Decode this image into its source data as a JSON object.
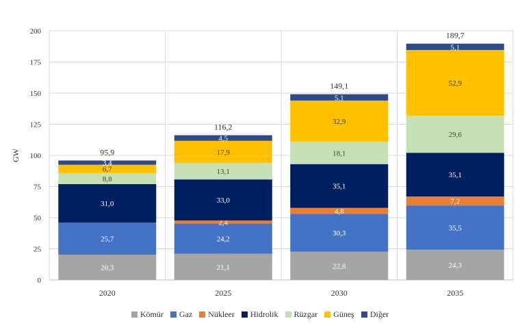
{
  "chart_data": {
    "type": "bar",
    "stacked": true,
    "title": "",
    "xlabel": "",
    "ylabel": "GW",
    "ylim": [
      0,
      200
    ],
    "yticks": [
      "0",
      "25",
      "50",
      "75",
      "100",
      "125",
      "150",
      "175",
      "200"
    ],
    "categories": [
      "2020",
      "2025",
      "2030",
      "2035"
    ],
    "series": [
      {
        "name": "Kömür",
        "color": "#A5A5A5",
        "values": [
          20.3,
          21.1,
          22.8,
          24.3
        ],
        "labels": [
          "20,3",
          "21,1",
          "22,8",
          "24,3"
        ]
      },
      {
        "name": "Gaz",
        "color": "#4472C4",
        "values": [
          25.7,
          24.2,
          30.3,
          35.5
        ],
        "labels": [
          "25,7",
          "24,2",
          "30,3",
          "35,5"
        ]
      },
      {
        "name": "Nükleer",
        "color": "#ED7D31",
        "values": [
          0,
          2.4,
          4.8,
          7.2
        ],
        "labels": [
          "",
          "2,4",
          "4,8",
          "7,2"
        ]
      },
      {
        "name": "Hidrolik",
        "color": "#002060",
        "values": [
          31.0,
          33.0,
          35.1,
          35.1
        ],
        "labels": [
          "31,0",
          "33,0",
          "35,1",
          "35,1"
        ]
      },
      {
        "name": "Rüzgar",
        "color": "#C5E0B4",
        "values": [
          8.8,
          13.1,
          18.1,
          29.6
        ],
        "labels": [
          "8,8",
          "13,1",
          "18,1",
          "29,6"
        ]
      },
      {
        "name": "Güneş",
        "color": "#FFC000",
        "values": [
          6.7,
          17.9,
          32.9,
          52.9
        ],
        "labels": [
          "6,7",
          "17,9",
          "32,9",
          "52,9"
        ]
      },
      {
        "name": "Diğer",
        "color": "#2F4A85",
        "values": [
          3.4,
          4.5,
          5.1,
          5.1
        ],
        "labels": [
          "3,4",
          "4,5",
          "5,1",
          "5,1"
        ]
      }
    ],
    "totals": [
      "95,9",
      "116,2",
      "149,1",
      "189,7"
    ],
    "grid": true,
    "legend_position": "bottom"
  }
}
